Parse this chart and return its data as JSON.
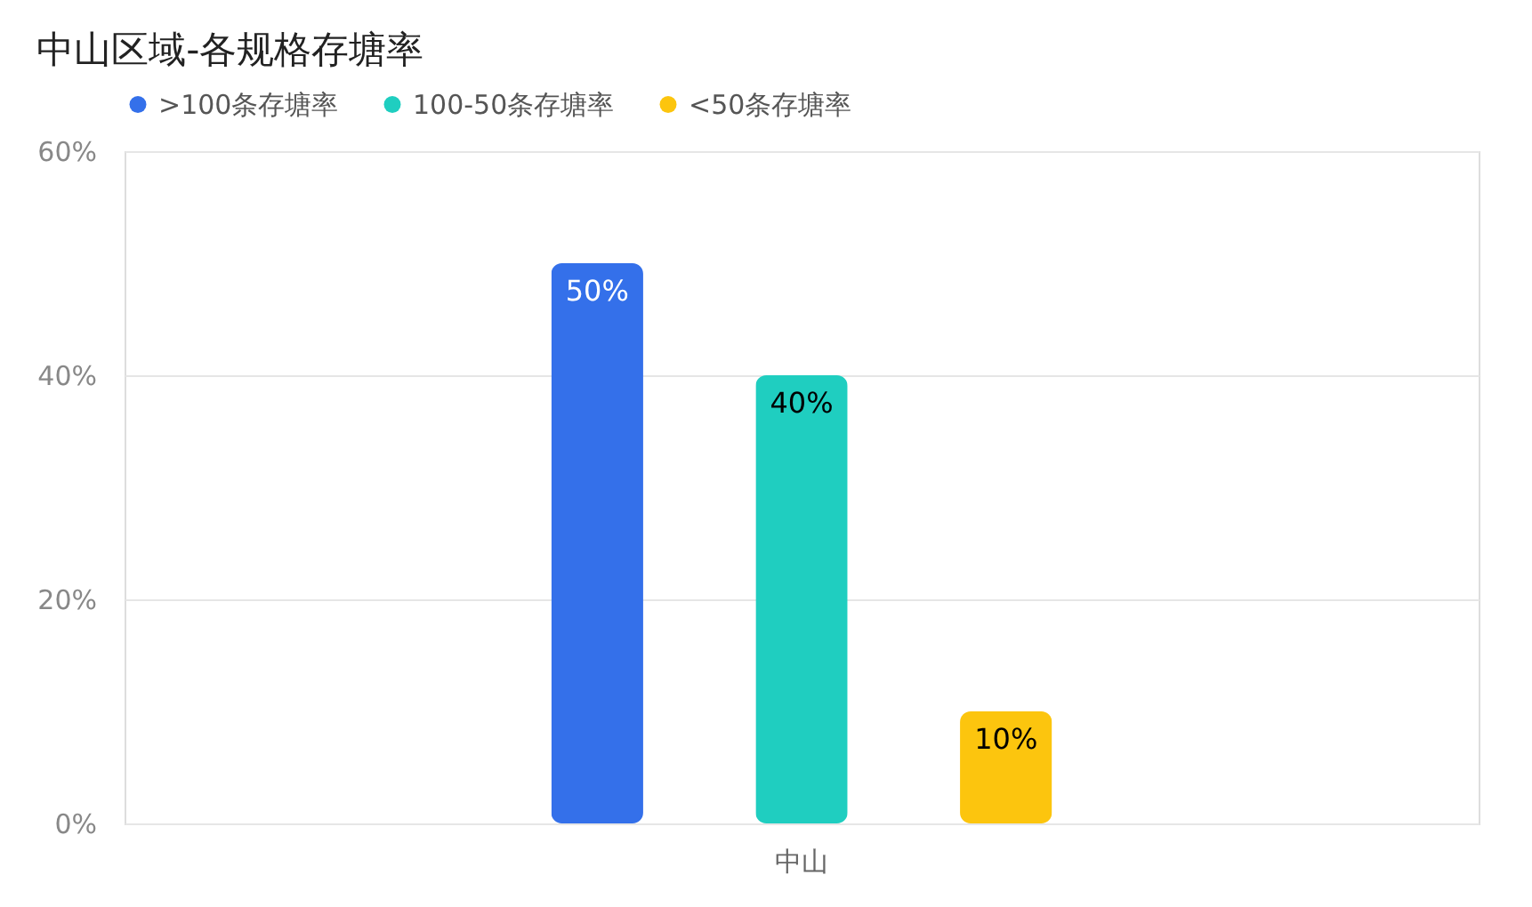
{
  "chart_data": {
    "type": "bar",
    "title": "中山区域-各规格存塘率",
    "categories": [
      "中山"
    ],
    "series": [
      {
        "name": ">100条存塘率",
        "color": "#3470ea",
        "values": [
          50
        ],
        "value_labels": [
          "50%"
        ]
      },
      {
        "name": "100-50条存塘率",
        "color": "#1fcec0",
        "values": [
          40
        ],
        "value_labels": [
          "40%"
        ]
      },
      {
        "name": "<50条存塘率",
        "color": "#fcc50e",
        "values": [
          10
        ],
        "value_labels": [
          "10%"
        ]
      }
    ],
    "ylim": [
      0,
      60
    ],
    "yticks": [
      {
        "value": 0,
        "label": "0%"
      },
      {
        "value": 20,
        "label": "20%"
      },
      {
        "value": 40,
        "label": "40%"
      },
      {
        "value": 60,
        "label": "60%"
      }
    ],
    "grid": "y",
    "legend": "top left"
  }
}
